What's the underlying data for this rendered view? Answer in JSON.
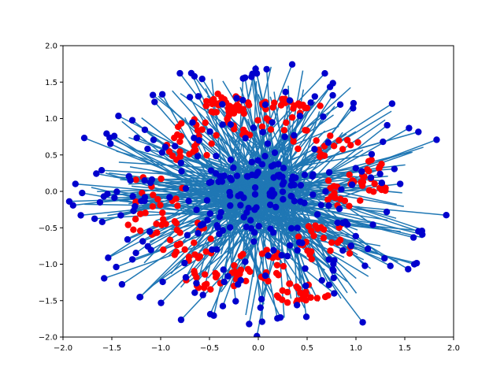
{
  "chart_data": {
    "type": "scatter",
    "title": "",
    "xlabel": "",
    "ylabel": "",
    "xlim": [
      -2.0,
      2.0
    ],
    "ylim": [
      -2.0,
      2.0
    ],
    "grid": false,
    "legend": "none",
    "x_ticks": [
      "−2.0",
      "−1.5",
      "−1.0",
      "−0.5",
      "0.0",
      "0.5",
      "1.0",
      "1.5",
      "2.0"
    ],
    "y_ticks": [
      "−2.0",
      "−1.5",
      "−1.0",
      "−0.5",
      "0.0",
      "0.5",
      "1.0",
      "1.5",
      "2.0"
    ],
    "colors": {
      "red_points": "#ff0000",
      "blue_points": "#0000cd",
      "lines": "#1f77b4"
    },
    "blobs": [
      {
        "cx": 0.0,
        "cy": 1.0,
        "rx": 0.35,
        "ry": 0.25
      },
      {
        "cx": 0.7,
        "cy": 0.7,
        "rx": 0.35,
        "ry": 0.25
      },
      {
        "cx": 1.0,
        "cy": 0.0,
        "rx": 0.35,
        "ry": 0.25
      },
      {
        "cx": 0.7,
        "cy": -0.7,
        "rx": 0.3,
        "ry": 0.3
      },
      {
        "cx": 0.0,
        "cy": -1.0,
        "rx": 0.35,
        "ry": 0.25
      },
      {
        "cx": -0.7,
        "cy": -0.7,
        "rx": 0.3,
        "ry": 0.3
      },
      {
        "cx": -1.0,
        "cy": 0.0,
        "rx": 0.35,
        "ry": 0.25
      },
      {
        "cx": -0.7,
        "cy": 0.7,
        "rx": 0.3,
        "ry": 0.3
      },
      {
        "cx": -0.35,
        "cy": 1.2,
        "rx": 0.2,
        "ry": 0.15
      },
      {
        "cx": 0.4,
        "cy": 1.2,
        "rx": 0.25,
        "ry": 0.15
      },
      {
        "cx": 0.45,
        "cy": -1.4,
        "rx": 0.3,
        "ry": 0.15
      },
      {
        "cx": -0.45,
        "cy": -1.2,
        "rx": 0.3,
        "ry": 0.15
      },
      {
        "cx": 1.2,
        "cy": 0.15,
        "rx": 0.15,
        "ry": 0.3
      },
      {
        "cx": -1.1,
        "cy": -0.4,
        "rx": 0.25,
        "ry": 0.2
      }
    ],
    "series": [
      {
        "role": "red",
        "count": 300,
        "radial_spread": 0.3,
        "seed": 11
      },
      {
        "role": "blue",
        "count": 300,
        "radial_spread": 1.8,
        "seed": 23
      }
    ]
  }
}
